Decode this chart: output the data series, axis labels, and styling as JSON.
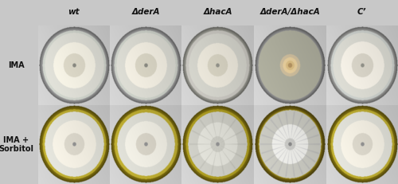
{
  "col_labels": [
    "wt",
    "ΔderA",
    "ΔhacA",
    "ΔderA/ΔhacA",
    "C’"
  ],
  "row_labels": [
    "IMA",
    "IMA +\nSorbitol"
  ],
  "figure_bg": "#c8c8c8",
  "figsize": [
    5.0,
    2.31
  ],
  "dpi": 100,
  "col_label_fontsize": 7.5,
  "row_label_fontsize": 7,
  "plates": [
    {
      "row": 0,
      "col": 0,
      "plate_rim": "#9a9a9a",
      "agar_bg": "#c8ccc4",
      "colony_outer": "#d8d8d0",
      "colony_ring": "#f0ede0",
      "colony_inner": "#d8d4c4",
      "center_dot": "#888880",
      "colony_r": 0.82,
      "ring_r": 0.58,
      "inner_r": 0.3,
      "type": "normal"
    },
    {
      "row": 0,
      "col": 1,
      "plate_rim": "#9a9a9a",
      "agar_bg": "#c4c8c0",
      "colony_outer": "#d4d4cc",
      "colony_ring": "#ece8dc",
      "colony_inner": "#d4d0c0",
      "center_dot": "#888880",
      "colony_r": 0.82,
      "ring_r": 0.58,
      "inner_r": 0.3,
      "type": "normal"
    },
    {
      "row": 0,
      "col": 2,
      "plate_rim": "#989890",
      "agar_bg": "#c0beb8",
      "colony_outer": "#ccccc4",
      "colony_ring": "#e4e0d4",
      "colony_inner": "#d0ccbc",
      "center_dot": "#909088",
      "colony_r": 0.8,
      "ring_r": 0.56,
      "inner_r": 0.28,
      "type": "normal"
    },
    {
      "row": 0,
      "col": 3,
      "plate_rim": "#909090",
      "agar_bg": "#a8a898",
      "colony_outer": "#c8b898",
      "colony_ring": "#e0c898",
      "colony_inner": "#d4b880",
      "center_dot": "#b09060",
      "colony_r": 0.28,
      "ring_r": 0.2,
      "inner_r": 0.12,
      "type": "small"
    },
    {
      "row": 0,
      "col": 4,
      "plate_rim": "#9a9a98",
      "agar_bg": "#c4c8c4",
      "colony_outer": "#d4d4cc",
      "colony_ring": "#eeeae0",
      "colony_inner": "#d4d0c4",
      "center_dot": "#909088",
      "colony_r": 0.82,
      "ring_r": 0.6,
      "inner_r": 0.3,
      "type": "normal"
    },
    {
      "row": 1,
      "col": 0,
      "plate_rim": "#807010",
      "agar_bg": "#b8a830",
      "colony_outer": "#dcdcd4",
      "colony_ring": "#f0ece0",
      "colony_inner": "#d8d4c8",
      "center_dot": "#909090",
      "colony_r": 0.82,
      "ring_r": 0.6,
      "inner_r": 0.28,
      "type": "normal"
    },
    {
      "row": 1,
      "col": 1,
      "plate_rim": "#807010",
      "agar_bg": "#b8a830",
      "colony_outer": "#d8d8d0",
      "colony_ring": "#eceae0",
      "colony_inner": "#d4d0c4",
      "center_dot": "#909090",
      "colony_r": 0.8,
      "ring_r": 0.58,
      "inner_r": 0.28,
      "type": "normal"
    },
    {
      "row": 1,
      "col": 2,
      "plate_rim": "#807010",
      "agar_bg": "#a89820",
      "colony_outer": "#c8c8c0",
      "colony_ring": "#dcdcd4",
      "colony_inner": "#c8c8c0",
      "center_dot": "#909090",
      "colony_r": 0.82,
      "ring_r": 0.55,
      "inner_r": 0.2,
      "type": "spoked",
      "n_spokes": 14,
      "spoke_color": "#a0a098"
    },
    {
      "row": 1,
      "col": 3,
      "plate_rim": "#706010",
      "agar_bg": "#988820",
      "colony_outer": "#c4c4bc",
      "colony_ring": "#e8e8e4",
      "colony_inner": "#c8c8c4",
      "center_dot": "#888888",
      "colony_r": 0.86,
      "ring_r": 0.5,
      "inner_r": 0.15,
      "type": "spoked",
      "n_spokes": 22,
      "spoke_color": "#9898a0"
    },
    {
      "row": 1,
      "col": 4,
      "plate_rim": "#807010",
      "agar_bg": "#b8a830",
      "colony_outer": "#dcdcd4",
      "colony_ring": "#f0ece0",
      "colony_inner": "#d8d4c8",
      "center_dot": "#909090",
      "colony_r": 0.82,
      "ring_r": 0.6,
      "inner_r": 0.28,
      "type": "normal"
    }
  ]
}
